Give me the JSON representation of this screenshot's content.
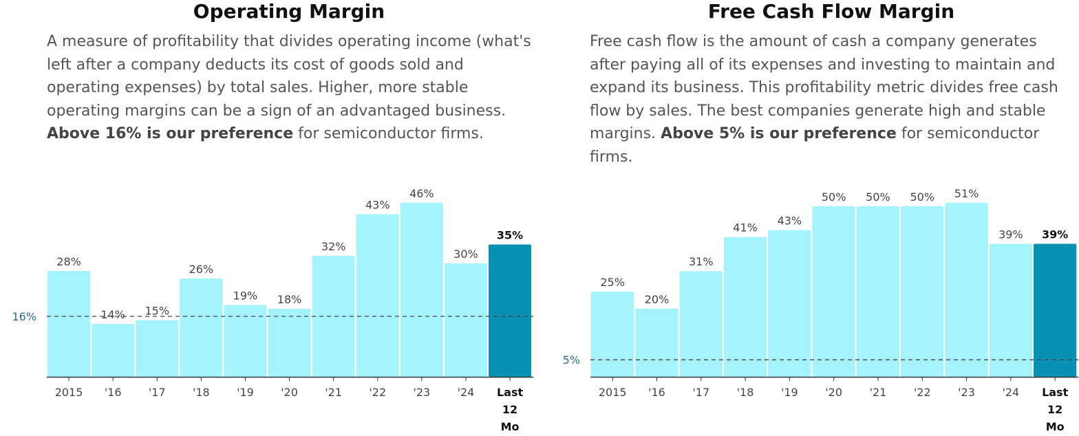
{
  "colors": {
    "bar": "#a5f3fc",
    "highlight": "#0891b2",
    "axis": "#333333",
    "refline": "#444444"
  },
  "panels": {
    "left": {
      "title": "Operating Margin",
      "desc_text": "A measure of profitability that divides operating income (what's left after a company deducts its cost of goods sold and operating expenses) by total sales. Higher, more stable operating margins can be a sign of an advantaged business.",
      "desc_bold": "Above 16% is our preference",
      "desc_tail": " for semiconductor firms."
    },
    "right": {
      "title": "Free Cash Flow Margin",
      "desc_text": "Free cash flow is the amount of cash a company generates after paying all of its expenses and investing to maintain and expand its business. This profitability metric divides free cash flow by sales. The best companies generate high and stable margins.",
      "desc_bold": "Above 5% is our preference",
      "desc_tail": " for semiconductor firms."
    }
  },
  "chart_data": [
    {
      "type": "bar",
      "title": "Operating Margin",
      "categories": [
        "2015",
        "'16",
        "'17",
        "'18",
        "'19",
        "'20",
        "'21",
        "'22",
        "'23",
        "'24",
        "Last 12 Mo"
      ],
      "values": [
        28,
        14,
        15,
        26,
        19,
        18,
        32,
        43,
        46,
        30,
        35
      ],
      "value_labels": [
        "28%",
        "14%",
        "15%",
        "26%",
        "19%",
        "18%",
        "32%",
        "43%",
        "46%",
        "30%",
        "35%"
      ],
      "highlight_category": "Last 12 Mo",
      "reference_line": {
        "value": 16,
        "label": "16%"
      },
      "ylim": [
        0,
        46
      ],
      "grid": false,
      "legend": "none"
    },
    {
      "type": "bar",
      "title": "Free Cash Flow Margin",
      "categories": [
        "2015",
        "'16",
        "'17",
        "'18",
        "'19",
        "'20",
        "'21",
        "'22",
        "'23",
        "'24",
        "Last 12 Mo"
      ],
      "values": [
        25,
        20,
        31,
        41,
        43,
        50,
        50,
        50,
        51,
        39,
        39
      ],
      "value_labels": [
        "25%",
        "20%",
        "31%",
        "41%",
        "43%",
        "50%",
        "50%",
        "50%",
        "51%",
        "39%",
        "39%"
      ],
      "highlight_category": "Last 12 Mo",
      "reference_line": {
        "value": 5,
        "label": "5%"
      },
      "ylim": [
        0,
        51
      ],
      "grid": false,
      "legend": "none"
    }
  ]
}
